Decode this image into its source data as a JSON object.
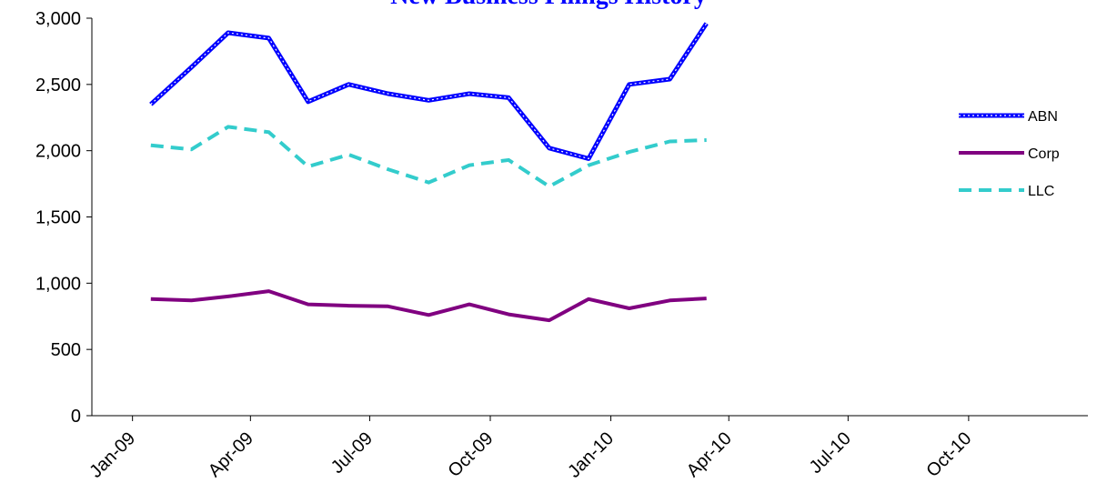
{
  "chart_data": {
    "type": "line",
    "title": "New Business Filings History",
    "title_color": "#0000FF",
    "xlabel": "",
    "ylabel": "",
    "ylim": [
      0,
      3000
    ],
    "y_ticks": [
      0,
      500,
      1000,
      1500,
      2000,
      2500,
      3000
    ],
    "y_tick_labels": [
      "0",
      "500",
      "1,000",
      "1,500",
      "2,000",
      "2,500",
      "3,000"
    ],
    "xlim": [
      "2008-12-01",
      "2010-12-31"
    ],
    "x_ticks": [
      "2009-01-01",
      "2009-04-01",
      "2009-07-01",
      "2009-10-01",
      "2010-01-01",
      "2010-04-01",
      "2010-07-01",
      "2010-10-01"
    ],
    "x_tick_labels": [
      "Jan-09",
      "Apr-09",
      "Jul-09",
      "Oct-09",
      "Jan-10",
      "Apr-10",
      "Jul-10",
      "Oct-10"
    ],
    "grid": false,
    "legend_position": "right",
    "x": [
      "2009-01-15",
      "2009-02-15",
      "2009-03-15",
      "2009-04-15",
      "2009-05-15",
      "2009-06-15",
      "2009-07-15",
      "2009-08-15",
      "2009-09-15",
      "2009-10-15",
      "2009-11-15",
      "2009-12-15",
      "2010-01-15",
      "2010-02-15",
      "2010-03-15"
    ],
    "series": [
      {
        "name": "ABN",
        "color": "#0000FF",
        "style": "double-dotted",
        "values": [
          2350,
          2630,
          2890,
          2850,
          2370,
          2500,
          2430,
          2380,
          2430,
          2400,
          2020,
          1940,
          2500,
          2540,
          2960
        ]
      },
      {
        "name": "Corp",
        "color": "#800080",
        "style": "solid",
        "values": [
          880,
          870,
          900,
          940,
          840,
          830,
          825,
          760,
          840,
          765,
          720,
          880,
          810,
          870,
          885
        ]
      },
      {
        "name": "LLC",
        "color": "#33CCCC",
        "style": "dashed",
        "values": [
          2040,
          2010,
          2180,
          2140,
          1880,
          1970,
          1860,
          1760,
          1890,
          1930,
          1730,
          1890,
          1990,
          2070,
          2080
        ]
      }
    ]
  }
}
